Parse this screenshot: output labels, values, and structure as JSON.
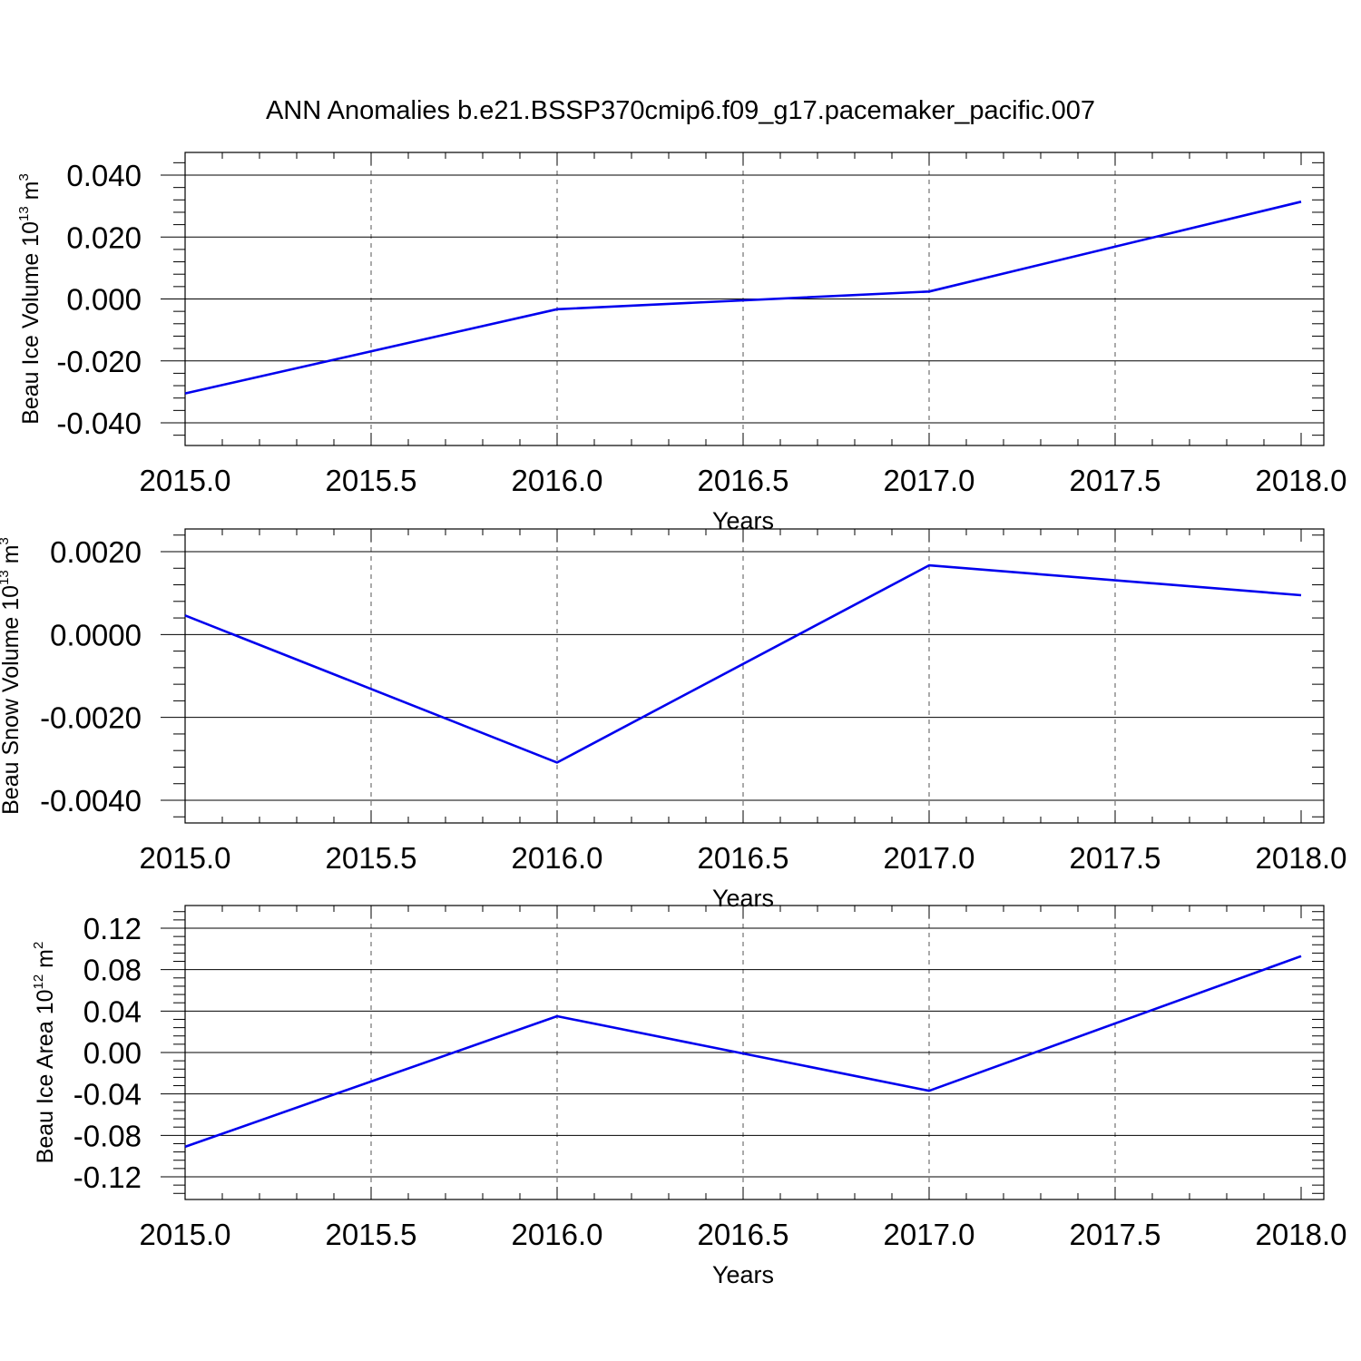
{
  "title": "ANN Anomalies b.e21.BSSP370cmip6.f09_g17.pacemaker_pacific.007",
  "colors": {
    "series": "#0000ee",
    "frame": "#000000",
    "grid": "#555555"
  },
  "chart_data": [
    {
      "type": "line",
      "ylabel": {
        "text": "Beau Ice Volume 10",
        "exp": "13",
        "unit": " m",
        "unit_exp": "3"
      },
      "xlabel": "Years",
      "xlim": [
        2015.0,
        2018.0
      ],
      "ylim": [
        -0.04,
        0.04
      ],
      "x_ticks": [
        "2015.0",
        "2015.5",
        "2016.0",
        "2016.5",
        "2017.0",
        "2017.5",
        "2018.0"
      ],
      "y_ticks": [
        "-0.040",
        "-0.020",
        "0.000",
        "0.020",
        "0.040"
      ],
      "grid": "x dashed",
      "x": [
        2015,
        2016,
        2017,
        2018
      ],
      "series": [
        {
          "values": [
            -0.0305,
            -0.0033,
            0.0024,
            0.0314
          ]
        }
      ]
    },
    {
      "type": "line",
      "ylabel": {
        "text": "Beau Snow Volume 10",
        "exp": "13",
        "unit": " m",
        "unit_exp": "3"
      },
      "xlabel": "Years",
      "xlim": [
        2015.0,
        2018.0
      ],
      "ylim": [
        -0.004,
        0.002
      ],
      "x_ticks": [
        "2015.0",
        "2015.5",
        "2016.0",
        "2016.5",
        "2017.0",
        "2017.5",
        "2018.0"
      ],
      "y_ticks": [
        "-0.0040",
        "-0.0020",
        "0.0000",
        "0.0020"
      ],
      "grid": "x dashed",
      "x": [
        2015,
        2016,
        2017,
        2018
      ],
      "series": [
        {
          "values": [
            0.00046,
            -0.00309,
            0.00167,
            0.00095
          ]
        }
      ]
    },
    {
      "type": "line",
      "ylabel": {
        "text": "Beau Ice Area 10",
        "exp": "12",
        "unit": " m",
        "unit_exp": "2"
      },
      "xlabel": "Years",
      "xlim": [
        2015.0,
        2018.0
      ],
      "ylim": [
        -0.12,
        0.12
      ],
      "x_ticks": [
        "2015.0",
        "2015.5",
        "2016.0",
        "2016.5",
        "2017.0",
        "2017.5",
        "2018.0"
      ],
      "y_ticks": [
        "-0.12",
        "-0.08",
        "-0.04",
        "0.00",
        "0.04",
        "0.08",
        "0.12"
      ],
      "grid": "x dashed",
      "x": [
        2015,
        2016,
        2017,
        2018
      ],
      "series": [
        {
          "values": [
            -0.091,
            0.035,
            -0.037,
            0.093
          ]
        }
      ]
    }
  ]
}
